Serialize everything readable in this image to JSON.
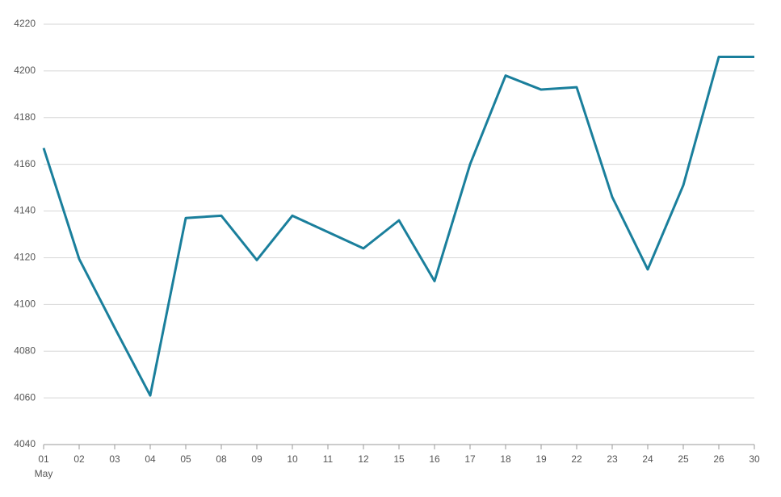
{
  "chart_data": {
    "type": "line",
    "categories": [
      "01",
      "02",
      "03",
      "04",
      "05",
      "08",
      "09",
      "10",
      "11",
      "12",
      "15",
      "16",
      "17",
      "18",
      "19",
      "22",
      "23",
      "24",
      "25",
      "26",
      "30"
    ],
    "month": "May",
    "series": [
      {
        "color": "#1a7f9c",
        "values": [
          4167,
          4119.5,
          4090,
          4061,
          4137,
          4138,
          4119,
          4138,
          4131,
          4124,
          4136,
          4110,
          4160,
          4198,
          4192,
          4193,
          4146,
          4115,
          4151,
          4206,
          4206
        ]
      }
    ],
    "ylim": [
      4040,
      4220
    ],
    "yticks": [
      4040,
      4060,
      4080,
      4100,
      4120,
      4140,
      4160,
      4180,
      4200,
      4220
    ],
    "grid": true
  }
}
